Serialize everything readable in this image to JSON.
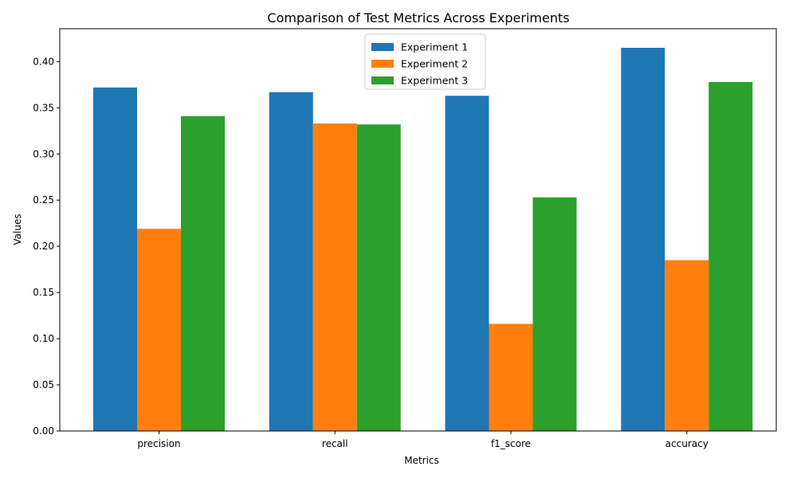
{
  "chart_data": {
    "type": "bar",
    "title": "Comparison of Test Metrics Across Experiments",
    "xlabel": "Metrics",
    "ylabel": "Values",
    "categories": [
      "precision",
      "recall",
      "f1_score",
      "accuracy"
    ],
    "series": [
      {
        "name": "Experiment 1",
        "color": "#1f77b4",
        "values": [
          0.372,
          0.367,
          0.363,
          0.415
        ]
      },
      {
        "name": "Experiment 2",
        "color": "#ff7f0e",
        "values": [
          0.219,
          0.333,
          0.116,
          0.185
        ]
      },
      {
        "name": "Experiment 3",
        "color": "#2ca02c",
        "values": [
          0.341,
          0.332,
          0.253,
          0.378
        ]
      }
    ],
    "ylim": [
      0,
      0.4357
    ],
    "yticks": [
      "0.00",
      "0.05",
      "0.10",
      "0.15",
      "0.20",
      "0.25",
      "0.30",
      "0.35",
      "0.40"
    ],
    "grid": false,
    "legend": "top-center"
  }
}
